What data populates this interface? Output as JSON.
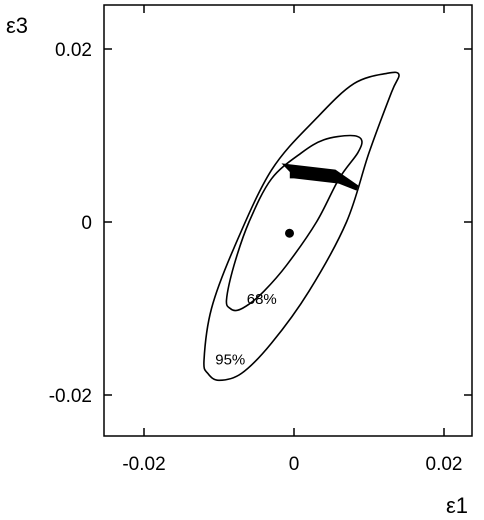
{
  "chart_data": {
    "type": "scatter",
    "title": "",
    "xlabel": "ε1",
    "ylabel": "ε3",
    "xlim": [
      -0.025,
      0.025
    ],
    "ylim": [
      -0.025,
      0.025
    ],
    "x_ticks": [
      -0.02,
      0,
      0.02
    ],
    "y_ticks": [
      -0.02,
      0,
      0.02
    ],
    "x_tick_labels": [
      "-0.02",
      "0",
      "0.02"
    ],
    "y_tick_labels": [
      "-0.02",
      "0",
      "0.02"
    ],
    "grid": false,
    "best_fit_point": {
      "x": -0.0006,
      "y": -0.0013
    },
    "contours": [
      {
        "label": "68%",
        "label_pos": {
          "x": -0.0063,
          "y": -0.0095
        },
        "points": [
          [
            -0.009,
            -0.009
          ],
          [
            -0.0085,
            -0.01
          ],
          [
            -0.0075,
            -0.0102
          ],
          [
            -0.006,
            -0.0095
          ],
          [
            -0.004,
            -0.008
          ],
          [
            -0.001,
            -0.005
          ],
          [
            0.003,
            0.0
          ],
          [
            0.006,
            0.005
          ],
          [
            0.0085,
            0.008
          ],
          [
            0.009,
            0.0095
          ],
          [
            0.0075,
            0.01
          ],
          [
            0.004,
            0.0095
          ],
          [
            0.001,
            0.008
          ],
          [
            -0.003,
            0.005
          ],
          [
            -0.006,
            0.0
          ],
          [
            -0.008,
            -0.005
          ],
          [
            -0.009,
            -0.009
          ]
        ]
      },
      {
        "label": "95%",
        "label_pos": {
          "x": -0.0105,
          "y": -0.0165
        },
        "points": [
          [
            -0.012,
            -0.016
          ],
          [
            -0.0115,
            -0.0175
          ],
          [
            -0.01,
            -0.0183
          ],
          [
            -0.007,
            -0.0175
          ],
          [
            -0.003,
            -0.014
          ],
          [
            0.002,
            -0.008
          ],
          [
            0.007,
            0.0
          ],
          [
            0.01,
            0.008
          ],
          [
            0.013,
            0.015
          ],
          [
            0.014,
            0.017
          ],
          [
            0.0125,
            0.0172
          ],
          [
            0.008,
            0.016
          ],
          [
            0.003,
            0.012
          ],
          [
            -0.003,
            0.006
          ],
          [
            -0.008,
            -0.003
          ],
          [
            -0.011,
            -0.01
          ],
          [
            -0.012,
            -0.016
          ]
        ]
      }
    ],
    "filled_region": [
      [
        -0.0015,
        0.0067
      ],
      [
        0.0055,
        0.006
      ],
      [
        0.0085,
        0.0042
      ],
      [
        0.0083,
        0.0037
      ],
      [
        0.006,
        0.0045
      ],
      [
        0.0,
        0.0051
      ],
      [
        -0.0005,
        0.0051
      ],
      [
        -0.0005,
        0.0058
      ],
      [
        -0.0015,
        0.0067
      ]
    ]
  }
}
